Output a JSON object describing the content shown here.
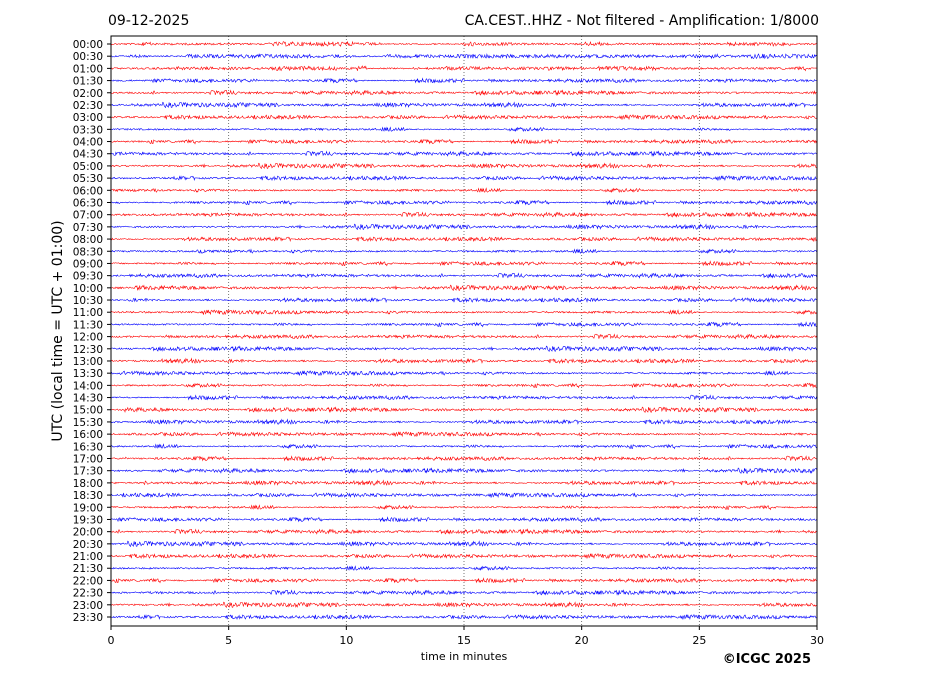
{
  "header": {
    "date": "09-12-2025",
    "station_info": "CA.CEST..HHZ - Not filtered - Amplification: 1/8000"
  },
  "footer": {
    "copyright": "©ICGC 2025"
  },
  "chart_data": {
    "type": "line",
    "title": "CA.CEST..HHZ - Not filtered - Amplification: 1/8000",
    "xlabel": "time in minutes",
    "ylabel": "UTC (local time = UTC + 01:00)",
    "xlim": [
      0,
      30
    ],
    "x_ticks": [
      "0",
      "5",
      "10",
      "15",
      "20",
      "25",
      "30"
    ],
    "x_tick_values": [
      0,
      5,
      10,
      15,
      20,
      25,
      30
    ],
    "grid": "vertical dotted at x ticks",
    "trace_colors": [
      "#ff0000",
      "#0000ff"
    ],
    "rows": [
      "00:00",
      "00:30",
      "01:00",
      "01:30",
      "02:00",
      "02:30",
      "03:00",
      "03:30",
      "04:00",
      "04:30",
      "05:00",
      "05:30",
      "06:00",
      "06:30",
      "07:00",
      "07:30",
      "08:00",
      "08:30",
      "09:00",
      "09:30",
      "10:00",
      "10:30",
      "11:00",
      "11:30",
      "12:00",
      "12:30",
      "13:00",
      "13:30",
      "14:00",
      "14:30",
      "15:00",
      "15:30",
      "16:00",
      "16:30",
      "17:00",
      "17:30",
      "18:00",
      "18:30",
      "19:00",
      "19:30",
      "20:00",
      "20:30",
      "21:00",
      "21:30",
      "22:00",
      "22:30",
      "23:00",
      "23:30"
    ]
  }
}
